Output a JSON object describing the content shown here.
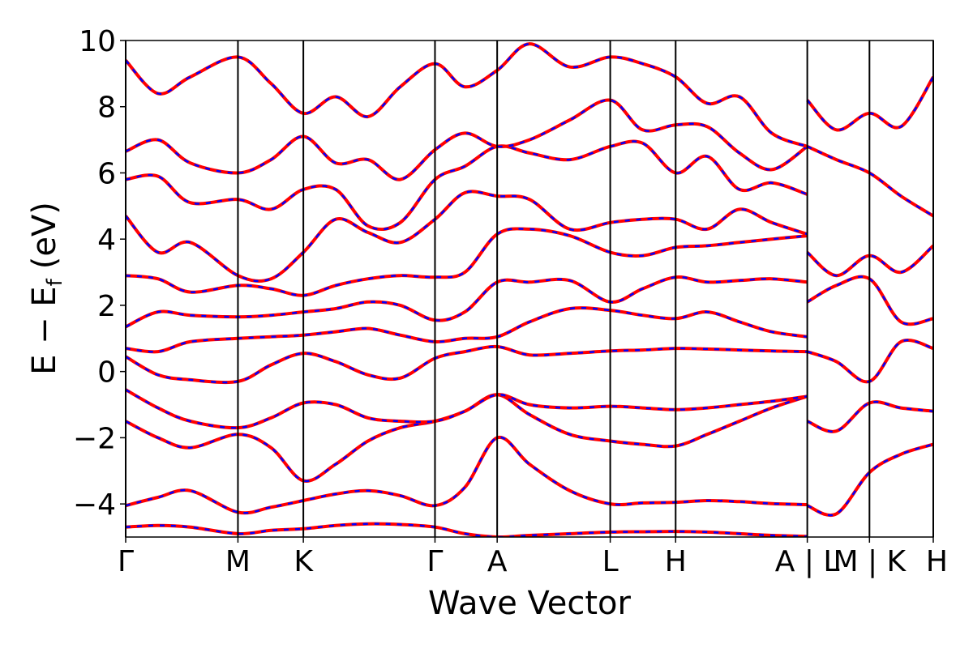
{
  "chart_data": {
    "type": "line",
    "xlabel": "Wave Vector",
    "ylabel_main": "E − E",
    "ylabel_sub": "f",
    "ylabel_unit": "(eV)",
    "ylim": [
      -5,
      10
    ],
    "yticks": [
      -4,
      -2,
      0,
      2,
      4,
      6,
      8,
      10
    ],
    "ytick_labels": [
      "−4",
      "−2",
      "0",
      "2",
      "4",
      "6",
      "8",
      "10"
    ],
    "xlim": [
      0,
      1
    ],
    "high_symmetry": [
      {
        "label": "Γ",
        "x": 0.0
      },
      {
        "label": "M",
        "x": 0.139
      },
      {
        "label": "K",
        "x": 0.22
      },
      {
        "label": "Γ",
        "x": 0.383
      },
      {
        "label": "A",
        "x": 0.46
      },
      {
        "label": "L",
        "x": 0.6
      },
      {
        "label": "H",
        "x": 0.681
      },
      {
        "label": "A | L",
        "x": 0.844
      },
      {
        "label": "M | K",
        "x": 0.921
      },
      {
        "label": "H",
        "x": 1.0
      }
    ],
    "grid": false,
    "series_styles": [
      {
        "color": "#ff0000",
        "style": "solid"
      },
      {
        "color": "#0000ff",
        "style": "dashed"
      }
    ],
    "bands": [
      {
        "x": [
          0,
          0.04,
          0.08,
          0.139,
          0.18,
          0.22,
          0.26,
          0.3,
          0.34,
          0.383,
          0.42,
          0.46,
          0.5,
          0.55,
          0.6,
          0.64,
          0.681,
          0.72,
          0.76,
          0.8,
          0.844
        ],
        "y": [
          -4.05,
          -3.8,
          -3.6,
          -4.25,
          -4.1,
          -3.9,
          -3.7,
          -3.6,
          -3.75,
          -4.05,
          -3.5,
          -2.0,
          -2.8,
          -3.6,
          -4.0,
          -3.97,
          -3.95,
          -3.9,
          -3.93,
          -3.99,
          -4.02
        ]
      },
      {
        "x": [
          0,
          0.04,
          0.08,
          0.139,
          0.18,
          0.22,
          0.26,
          0.3,
          0.34,
          0.383,
          0.42,
          0.46,
          0.5,
          0.55,
          0.6,
          0.64,
          0.681,
          0.72,
          0.76,
          0.8,
          0.844
        ],
        "y": [
          -4.7,
          -4.65,
          -4.7,
          -4.9,
          -4.8,
          -4.75,
          -4.65,
          -4.6,
          -4.62,
          -4.7,
          -4.9,
          -5.0,
          -4.95,
          -4.9,
          -4.85,
          -4.84,
          -4.83,
          -4.85,
          -4.9,
          -4.95,
          -4.98
        ]
      },
      {
        "x": [
          0,
          0.04,
          0.08,
          0.139,
          0.18,
          0.22,
          0.26,
          0.3,
          0.34,
          0.383,
          0.42,
          0.46,
          0.5,
          0.55,
          0.6,
          0.64,
          0.681,
          0.72,
          0.76,
          0.8,
          0.844
        ],
        "y": [
          -1.5,
          -2.0,
          -2.3,
          -1.9,
          -2.3,
          -3.3,
          -2.8,
          -2.1,
          -1.7,
          -1.5,
          -1.2,
          -0.7,
          -1.3,
          -1.9,
          -2.1,
          -2.2,
          -2.25,
          -1.9,
          -1.5,
          -1.1,
          -0.75
        ]
      },
      {
        "x": [
          0,
          0.04,
          0.08,
          0.139,
          0.18,
          0.22,
          0.26,
          0.3,
          0.34,
          0.383,
          0.42,
          0.46,
          0.5,
          0.55,
          0.6,
          0.64,
          0.681,
          0.72,
          0.76,
          0.8,
          0.844
        ],
        "y": [
          -0.55,
          -1.1,
          -1.5,
          -1.7,
          -1.4,
          -0.95,
          -1.0,
          -1.4,
          -1.5,
          -1.5,
          -1.2,
          -0.7,
          -1.0,
          -1.1,
          -1.05,
          -1.1,
          -1.15,
          -1.1,
          -1.0,
          -0.9,
          -0.75
        ]
      },
      {
        "x": [
          0,
          0.04,
          0.08,
          0.139,
          0.18,
          0.22,
          0.26,
          0.3,
          0.34,
          0.383,
          0.42,
          0.46,
          0.5,
          0.55,
          0.6,
          0.64,
          0.681,
          0.72,
          0.76,
          0.8,
          0.844
        ],
        "y": [
          0.45,
          -0.1,
          -0.25,
          -0.3,
          0.2,
          0.55,
          0.3,
          -0.1,
          -0.2,
          0.4,
          0.6,
          0.75,
          0.5,
          0.55,
          0.62,
          0.65,
          0.7,
          0.68,
          0.65,
          0.62,
          0.6
        ]
      },
      {
        "x": [
          0,
          0.04,
          0.08,
          0.139,
          0.18,
          0.22,
          0.26,
          0.3,
          0.34,
          0.383,
          0.42,
          0.46,
          0.5,
          0.55,
          0.6,
          0.64,
          0.681,
          0.72,
          0.76,
          0.8,
          0.844
        ],
        "y": [
          0.7,
          0.6,
          0.9,
          1.0,
          1.05,
          1.1,
          1.2,
          1.3,
          1.1,
          0.9,
          1.0,
          1.05,
          1.5,
          1.9,
          1.85,
          1.7,
          1.6,
          1.8,
          1.5,
          1.2,
          1.05
        ]
      },
      {
        "x": [
          0,
          0.04,
          0.08,
          0.139,
          0.18,
          0.22,
          0.26,
          0.3,
          0.34,
          0.383,
          0.42,
          0.46,
          0.5,
          0.55,
          0.6,
          0.64,
          0.681,
          0.72,
          0.76,
          0.8,
          0.844
        ],
        "y": [
          1.35,
          1.8,
          1.7,
          1.65,
          1.7,
          1.8,
          1.9,
          2.1,
          2.0,
          1.55,
          1.8,
          2.7,
          2.7,
          2.75,
          2.1,
          2.5,
          2.85,
          2.7,
          2.75,
          2.8,
          2.7
        ]
      },
      {
        "x": [
          0,
          0.04,
          0.08,
          0.139,
          0.18,
          0.22,
          0.26,
          0.3,
          0.34,
          0.383,
          0.42,
          0.46,
          0.5,
          0.55,
          0.6,
          0.64,
          0.681,
          0.72,
          0.76,
          0.8,
          0.844
        ],
        "y": [
          2.9,
          2.8,
          2.4,
          2.6,
          2.5,
          2.3,
          2.6,
          2.8,
          2.9,
          2.85,
          3.0,
          4.15,
          4.3,
          4.1,
          3.6,
          3.5,
          3.75,
          3.8,
          3.9,
          4.0,
          4.1
        ]
      },
      {
        "x": [
          0,
          0.04,
          0.08,
          0.139,
          0.18,
          0.22,
          0.26,
          0.3,
          0.34,
          0.383,
          0.42,
          0.46,
          0.5,
          0.55,
          0.6,
          0.64,
          0.681,
          0.72,
          0.76,
          0.8,
          0.844
        ],
        "y": [
          4.7,
          3.6,
          3.9,
          2.9,
          2.8,
          3.6,
          4.6,
          4.2,
          3.9,
          4.6,
          5.4,
          5.3,
          5.2,
          4.3,
          4.5,
          4.6,
          4.6,
          4.3,
          4.9,
          4.5,
          4.15
        ]
      },
      {
        "x": [
          0,
          0.04,
          0.08,
          0.139,
          0.18,
          0.22,
          0.26,
          0.3,
          0.34,
          0.383,
          0.42,
          0.46,
          0.5,
          0.55,
          0.6,
          0.64,
          0.681,
          0.72,
          0.76,
          0.8,
          0.844
        ],
        "y": [
          5.8,
          5.9,
          5.1,
          5.2,
          4.9,
          5.5,
          5.5,
          4.4,
          4.5,
          5.8,
          6.2,
          6.8,
          6.6,
          6.4,
          6.8,
          6.9,
          6.0,
          6.5,
          5.5,
          5.7,
          5.35
        ]
      },
      {
        "x": [
          0,
          0.04,
          0.08,
          0.139,
          0.18,
          0.22,
          0.26,
          0.3,
          0.34,
          0.383,
          0.42,
          0.46,
          0.5,
          0.55,
          0.6,
          0.64,
          0.681,
          0.72,
          0.76,
          0.8,
          0.844
        ],
        "y": [
          6.65,
          7.0,
          6.3,
          6.0,
          6.4,
          7.1,
          6.3,
          6.4,
          5.8,
          6.7,
          7.2,
          6.8,
          7.0,
          7.6,
          8.2,
          7.3,
          7.45,
          7.4,
          6.6,
          6.1,
          6.8
        ]
      },
      {
        "x": [
          0,
          0.04,
          0.08,
          0.139,
          0.18,
          0.22,
          0.26,
          0.3,
          0.34,
          0.383,
          0.42,
          0.46,
          0.5,
          0.55,
          0.6,
          0.64,
          0.681,
          0.72,
          0.76,
          0.8,
          0.844
        ],
        "y": [
          9.4,
          8.4,
          8.9,
          9.5,
          8.7,
          7.8,
          8.3,
          7.7,
          8.6,
          9.3,
          8.6,
          9.1,
          9.9,
          9.2,
          9.5,
          9.3,
          8.9,
          8.1,
          8.3,
          7.2,
          6.8
        ]
      },
      {
        "x": [
          0.844,
          0.88,
          0.921,
          0.96,
          1.0
        ],
        "y": [
          -4.05,
          -4.3,
          -3.05,
          -2.5,
          -2.2
        ]
      },
      {
        "x": [
          0.844,
          0.88,
          0.921,
          0.96,
          1.0
        ],
        "y": [
          -1.5,
          -1.8,
          -0.95,
          -1.1,
          -1.2
        ]
      },
      {
        "x": [
          0.844,
          0.88,
          0.921,
          0.96,
          1.0
        ],
        "y": [
          0.6,
          0.3,
          -0.3,
          0.9,
          0.7
        ]
      },
      {
        "x": [
          0.844,
          0.88,
          0.921,
          0.96,
          1.0
        ],
        "y": [
          2.1,
          2.6,
          2.8,
          1.5,
          1.6
        ]
      },
      {
        "x": [
          0.844,
          0.88,
          0.921,
          0.96,
          1.0
        ],
        "y": [
          3.6,
          2.9,
          3.5,
          3.0,
          3.8
        ]
      },
      {
        "x": [
          0.844,
          0.88,
          0.921,
          0.96,
          1.0
        ],
        "y": [
          6.8,
          6.4,
          6.0,
          5.3,
          4.7
        ]
      },
      {
        "x": [
          0.844,
          0.88,
          0.921,
          0.96,
          1.0
        ],
        "y": [
          8.2,
          7.3,
          7.8,
          7.4,
          8.9
        ]
      }
    ]
  }
}
